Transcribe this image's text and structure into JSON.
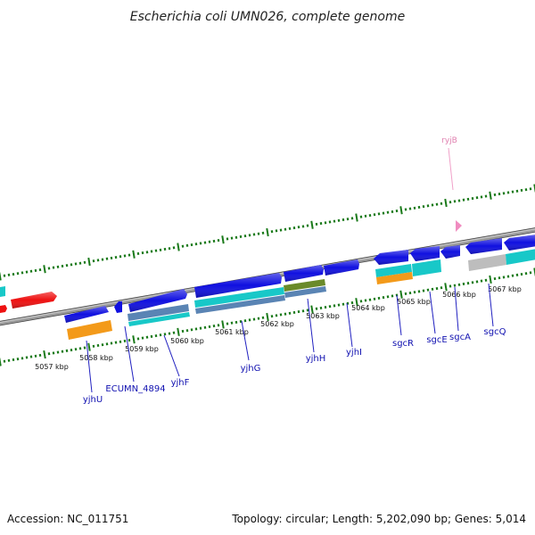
{
  "title": "Escherichia coli UMN026, complete genome",
  "footer": {
    "accession": "Accession: NC_011751",
    "summary": "Topology: circular; Length: 5,202,090 bp; Genes: 5,014"
  },
  "scale_labels": [
    "5057 kbp",
    "5058 kbp",
    "5059 kbp",
    "5060 kbp",
    "5061 kbp",
    "5062 kbp",
    "5063 kbp",
    "5064 kbp",
    "5065 kbp",
    "5066 kbp",
    "5067 kbp"
  ],
  "gene_labels": {
    "yjhU": "yjhU",
    "ecumn_4894": "ECUMN_4894",
    "yjhF": "yjhF",
    "yjhG": "yjhG",
    "yjhH": "yjhH",
    "yjhI": "yjhI",
    "sgcR": "sgcR",
    "sgcE": "sgcE",
    "sgcA": "sgcA",
    "sgcQ": "sgcQ",
    "ryjB": "ryjB"
  },
  "colors": {
    "backbone": "#8a8a8a",
    "tick": "#1a7a1a",
    "cds": "#1010e0",
    "red_feature": "#ee1111",
    "orange_feature": "#f39a1a",
    "cyan_feature": "#18c8c8",
    "steel_feature": "#5a84b4",
    "olive_feature": "#6a8a2a",
    "gray_feature": "#bdbdbd",
    "ncrna": "#f08cc0",
    "gene_label": "#1010b0"
  }
}
